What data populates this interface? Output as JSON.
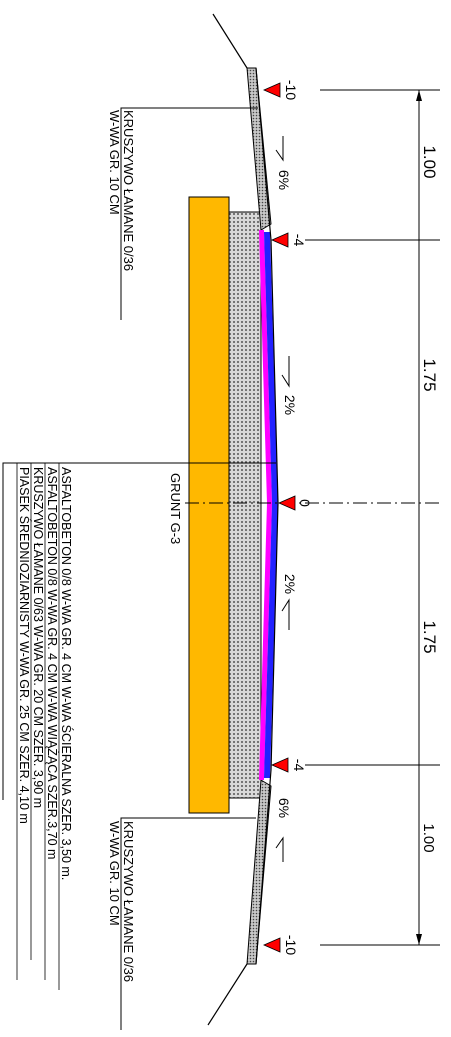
{
  "dimensions": {
    "dim_1": "1.00",
    "dim_2": "1.75",
    "dim_3": "1.75",
    "dim_4": "1.00"
  },
  "elevations": {
    "e1": "-10",
    "e2": "-4",
    "e3": "0",
    "e4": "-4",
    "e5": "-10"
  },
  "slopes": {
    "s1": "6%",
    "s2": "2%",
    "s3": "2%",
    "s4": "6%"
  },
  "shoulder_top": {
    "line1": "KRUSZYWO ŁAMANE 0/36",
    "line2": "W-WA GR. 10 CM"
  },
  "shoulder_bottom": {
    "line1": "KRUSZYWO ŁAMANE 0/36",
    "line2": "W-WA GR. 10 CM"
  },
  "subgrade_label": "GRUNT G-3",
  "layers": [
    "ASFALTOBETON 0/8 W-WA GR. 4 CM W-WA ŚCIERALNA SZER. 3,50 m.",
    "ASFALTOBETON 0/8 W-WA GR. 4 CM W-WA WIĄŻĄCA SZER.3,70 m",
    "KRUSZYWO ŁAMANE 0/63 W-WA GR. 20 CM SZER. 3,90 m",
    "PIASEK ŚREDNIOZIARNISTY W-WA GR. 25 CM SZER. 4,10 m"
  ],
  "colors": {
    "sand": "#FFB800",
    "aggregate": "#bdbdbd",
    "wearing": "#2222ff",
    "binder": "#ff00ff",
    "marker": "#ff0000"
  }
}
